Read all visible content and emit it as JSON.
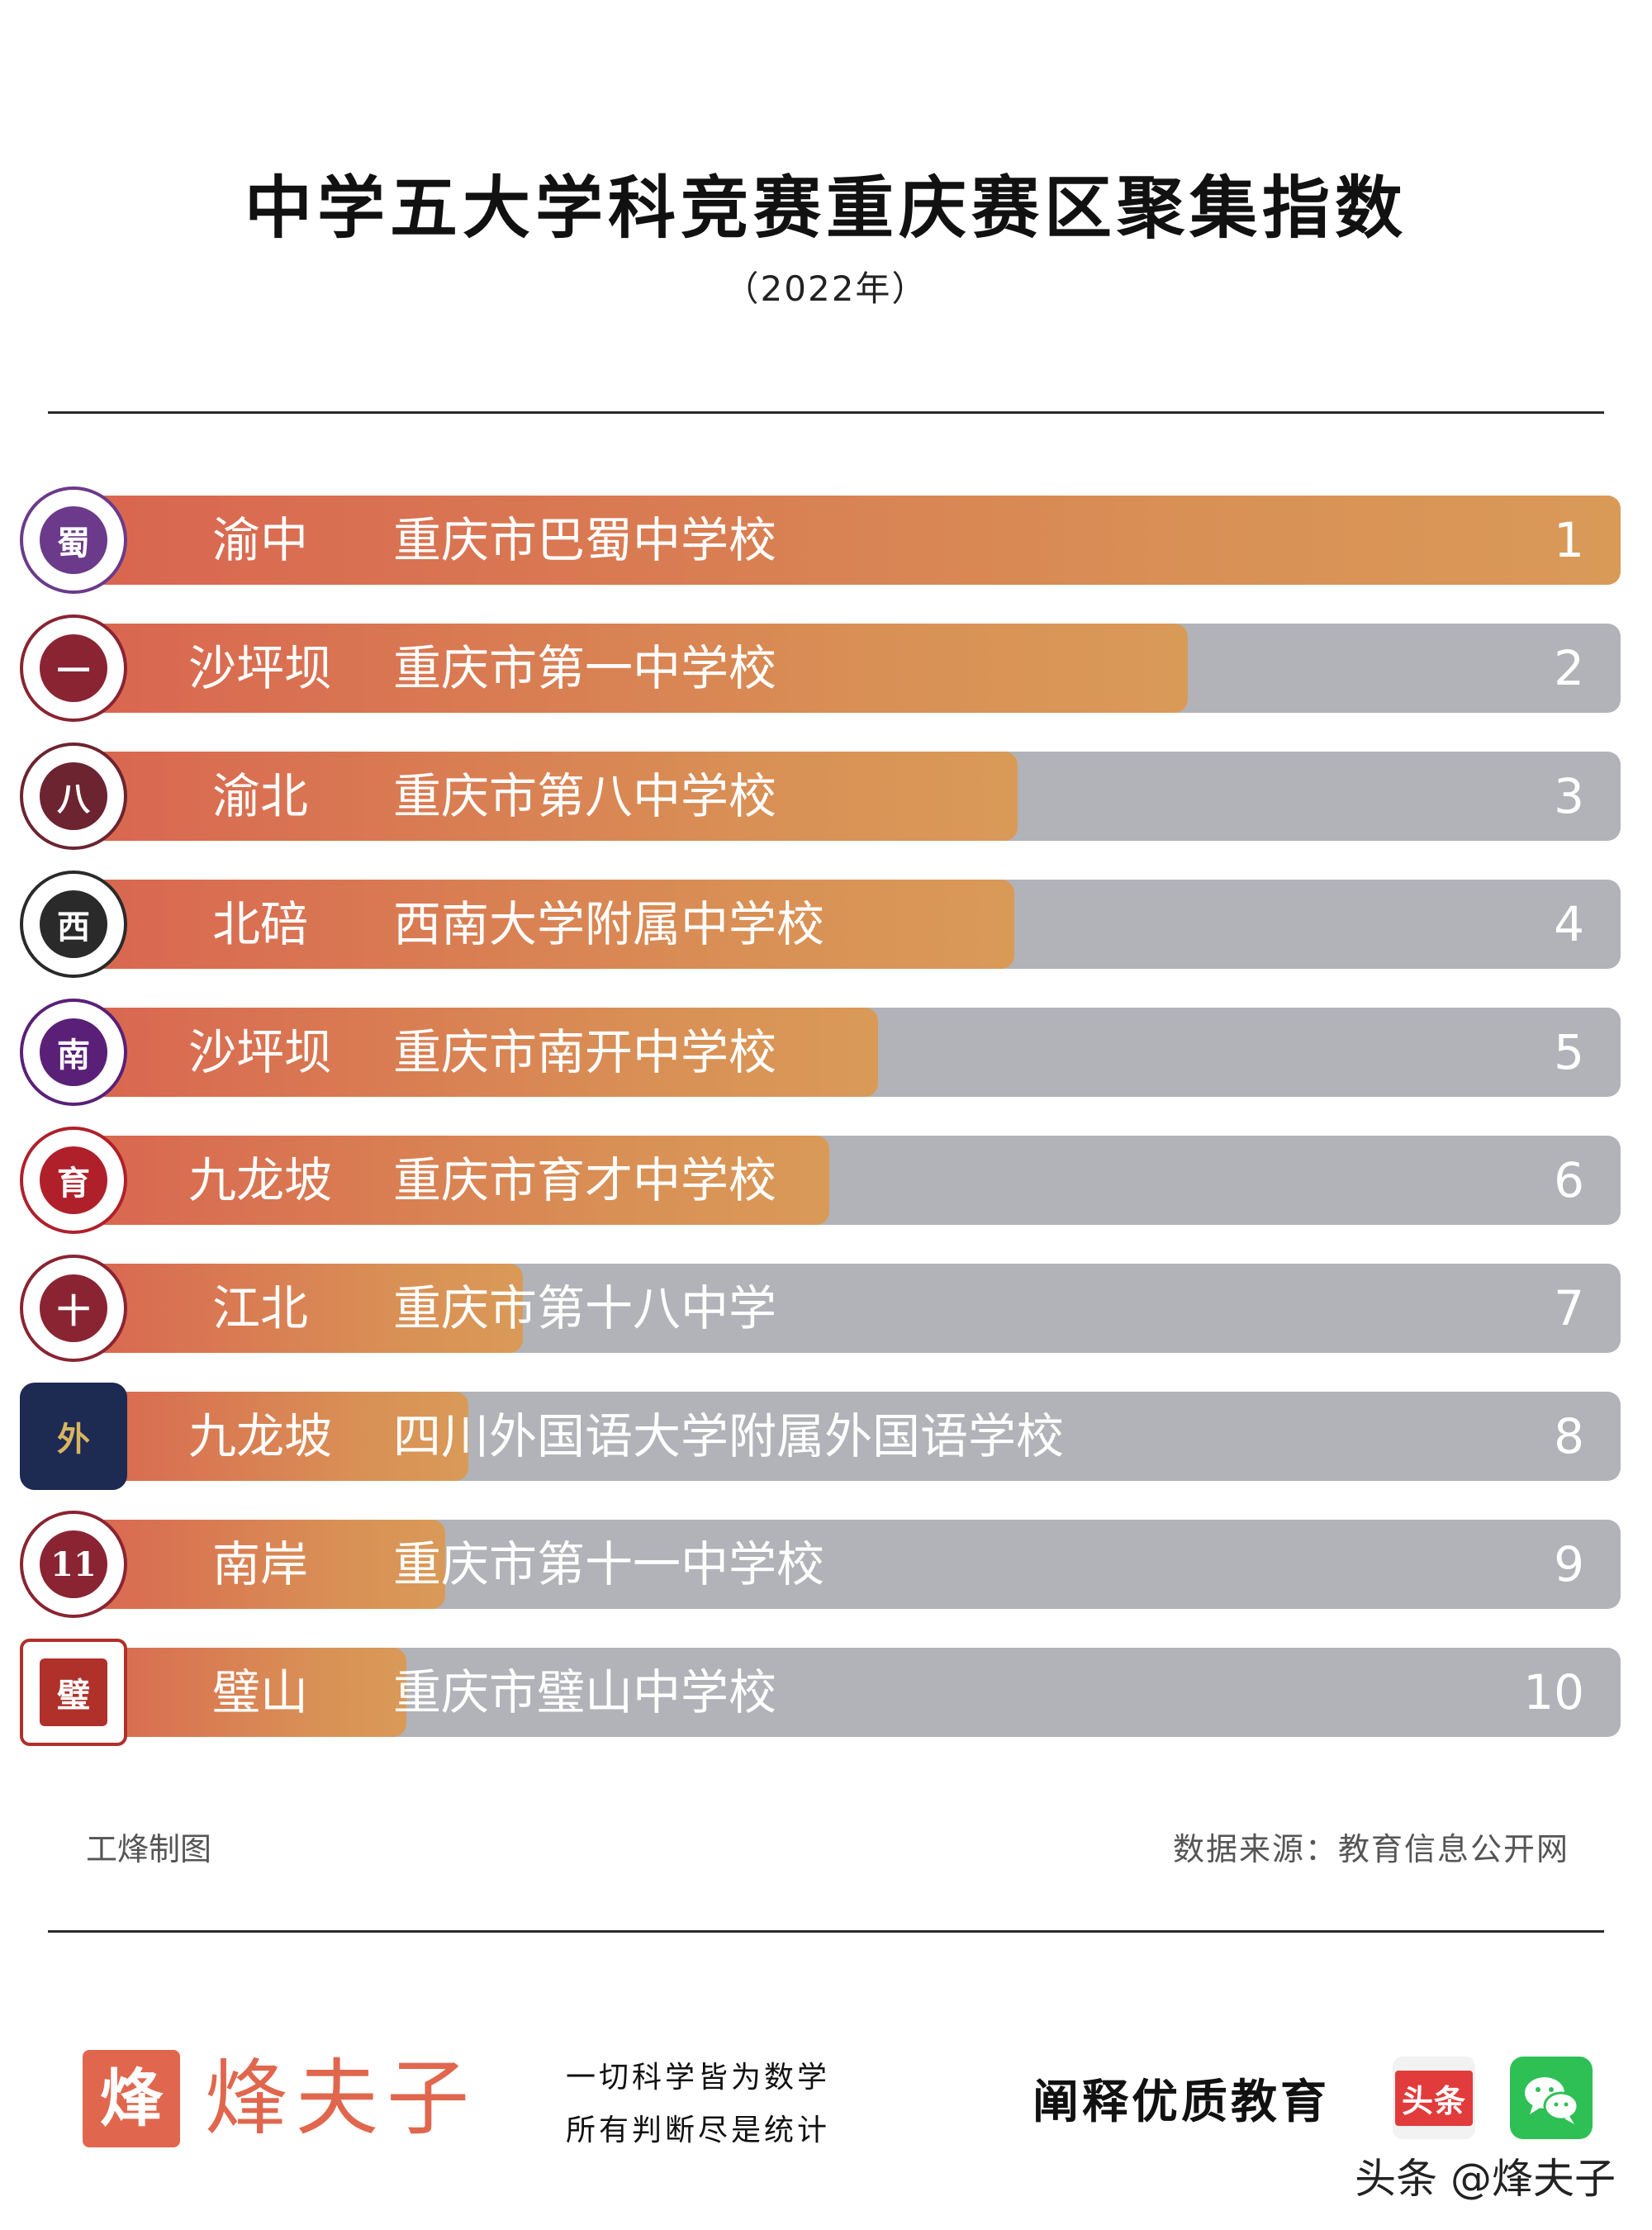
{
  "chart_data": {
    "type": "bar",
    "title": "中学五大学科竞赛重庆赛区聚集指数",
    "subtitle": "（2022年）",
    "orientation": "horizontal",
    "value_range": [
      0,
      1
    ],
    "rows": [
      {
        "rank": "1",
        "district": "渝中",
        "school": "重庆市巴蜀中学校",
        "value": 1.0,
        "logo_icon": "bashu-logo-icon",
        "logo_color": "#6b3a8a",
        "logo_glyph": "蜀"
      },
      {
        "rank": "2",
        "district": "沙坪坝",
        "school": "重庆市第一中学校",
        "value": 0.72,
        "logo_icon": "chongqing-no1-logo-icon",
        "logo_color": "#8a2432",
        "logo_glyph": "一"
      },
      {
        "rank": "3",
        "district": "渝北",
        "school": "重庆市第八中学校",
        "value": 0.61,
        "logo_icon": "chongqing-no8-logo-icon",
        "logo_color": "#6b2430",
        "logo_glyph": "八"
      },
      {
        "rank": "4",
        "district": "北碚",
        "school": "西南大学附属中学校",
        "value": 0.608,
        "logo_icon": "swu-affiliated-logo-icon",
        "logo_color": "#2a2a2a",
        "logo_glyph": "西"
      },
      {
        "rank": "5",
        "district": "沙坪坝",
        "school": "重庆市南开中学校",
        "value": 0.52,
        "logo_icon": "nankai-logo-icon",
        "logo_color": "#5a2078",
        "logo_glyph": "南"
      },
      {
        "rank": "6",
        "district": "九龙坡",
        "school": "重庆市育才中学校",
        "value": 0.488,
        "logo_icon": "yucai-logo-icon",
        "logo_color": "#b0202a",
        "logo_glyph": "育"
      },
      {
        "rank": "7",
        "district": "江北",
        "school": "重庆市第十八中学",
        "value": 0.29,
        "logo_icon": "chongqing-no18-logo-icon",
        "logo_color": "#8a2432",
        "logo_glyph": "十"
      },
      {
        "rank": "8",
        "district": "九龙坡",
        "school": "四川外国语大学附属外国语学校",
        "value": 0.255,
        "logo_icon": "sisu-foreign-language-logo-icon",
        "logo_color": "#1d2a52",
        "logo_glyph": "外"
      },
      {
        "rank": "9",
        "district": "南岸",
        "school": "重庆市第十一中学校",
        "value": 0.24,
        "logo_icon": "chongqing-no11-logo-icon",
        "logo_color": "#8a2432",
        "logo_glyph": "11"
      },
      {
        "rank": "10",
        "district": "璧山",
        "school": "重庆市璧山中学校",
        "value": 0.215,
        "logo_icon": "bishan-logo-icon",
        "logo_color": "#b0302a",
        "logo_glyph": "璧"
      }
    ],
    "colors": {
      "bar_start": "#d96550",
      "bar_end": "#d99a58",
      "track": "#b2b3b9"
    }
  },
  "footer": {
    "maker": "工烽制图",
    "source": "数据来源：教育信息公开网"
  },
  "brand": {
    "mark_glyph": "烽",
    "name": "烽夫子",
    "slogan_line1": "一切科学皆为数学",
    "slogan_line2": "所有判断尽是统计",
    "tagline": "阐释优质教育",
    "toutiao_label": "头条",
    "watermark": "头条 @烽夫子",
    "accent_color": "#e0674e"
  }
}
